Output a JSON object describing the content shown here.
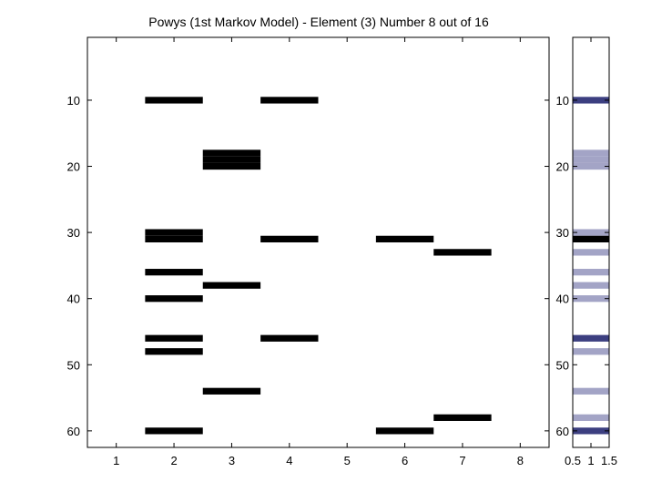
{
  "chart_data": [
    {
      "type": "heatmap",
      "title": "Powys (1st Markov Model) - Element (3) Number 8 out of 16",
      "xlim": [
        0.5,
        8.5
      ],
      "ylim": [
        0.5,
        62.5
      ],
      "x_ticks": [
        1,
        2,
        3,
        4,
        5,
        6,
        7,
        8
      ],
      "y_ticks": [
        10,
        20,
        30,
        40,
        50,
        60
      ],
      "y_reversed": true,
      "grid": false,
      "fill_color": "#000000",
      "cells": [
        {
          "x": 2,
          "y": [
            10,
            30,
            31,
            36,
            40,
            46,
            48,
            60
          ]
        },
        {
          "x": 3,
          "y": [
            18,
            19,
            20,
            38,
            54
          ]
        },
        {
          "x": 4,
          "y": [
            10,
            31,
            46
          ]
        },
        {
          "x": 6,
          "y": [
            31,
            60
          ]
        },
        {
          "x": 7,
          "y": [
            33,
            58
          ]
        }
      ]
    },
    {
      "type": "heatmap",
      "xlim": [
        0.5,
        1.5
      ],
      "ylim": [
        0.5,
        62.5
      ],
      "x_ticks": [
        "0.5",
        "1",
        "1.5"
      ],
      "y_ticks": [
        10,
        20,
        30,
        40,
        50,
        60
      ],
      "y_reversed": true,
      "colors": {
        "1": "#a3a4c6",
        "2": "#3c3f80",
        "3": "#000000"
      },
      "rows": [
        {
          "y": 10,
          "value": 2
        },
        {
          "y": 18,
          "value": 1
        },
        {
          "y": 19,
          "value": 1
        },
        {
          "y": 20,
          "value": 1
        },
        {
          "y": 30,
          "value": 1
        },
        {
          "y": 31,
          "value": 3
        },
        {
          "y": 33,
          "value": 1
        },
        {
          "y": 36,
          "value": 1
        },
        {
          "y": 38,
          "value": 1
        },
        {
          "y": 40,
          "value": 1
        },
        {
          "y": 46,
          "value": 2
        },
        {
          "y": 48,
          "value": 1
        },
        {
          "y": 54,
          "value": 1
        },
        {
          "y": 58,
          "value": 1
        },
        {
          "y": 60,
          "value": 2
        }
      ]
    }
  ]
}
